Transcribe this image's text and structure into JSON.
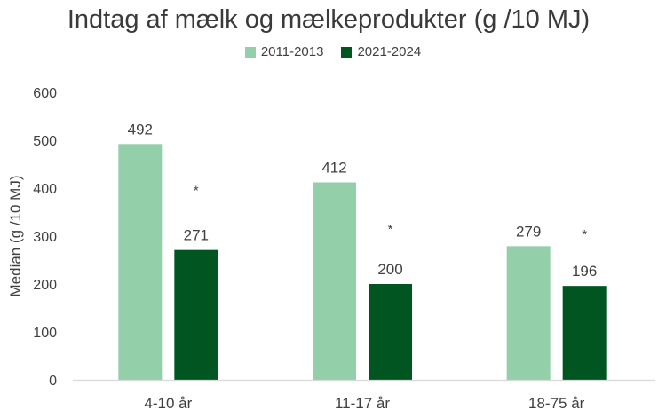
{
  "chart_data": {
    "type": "bar",
    "title": "Indtag af mælk og mælkeprodukter (g /10 MJ)",
    "xlabel": "",
    "ylabel": "Median (g /10 MJ)",
    "categories": [
      "4-10 år",
      "11-17 år",
      "18-75 år"
    ],
    "series": [
      {
        "name": "2011-2013",
        "values": [
          492,
          412,
          279
        ],
        "color": "#93cfa8",
        "annotations": [
          "",
          "",
          ""
        ]
      },
      {
        "name": "2021-2024",
        "values": [
          271,
          200,
          196
        ],
        "color": "#005520",
        "annotations": [
          "*",
          "*",
          "*"
        ]
      }
    ],
    "ylim": [
      0,
      600
    ],
    "yticks": [
      0,
      100,
      200,
      300,
      400,
      500,
      600
    ],
    "grid": false,
    "legend_position": "top-center",
    "data_labels": true
  }
}
